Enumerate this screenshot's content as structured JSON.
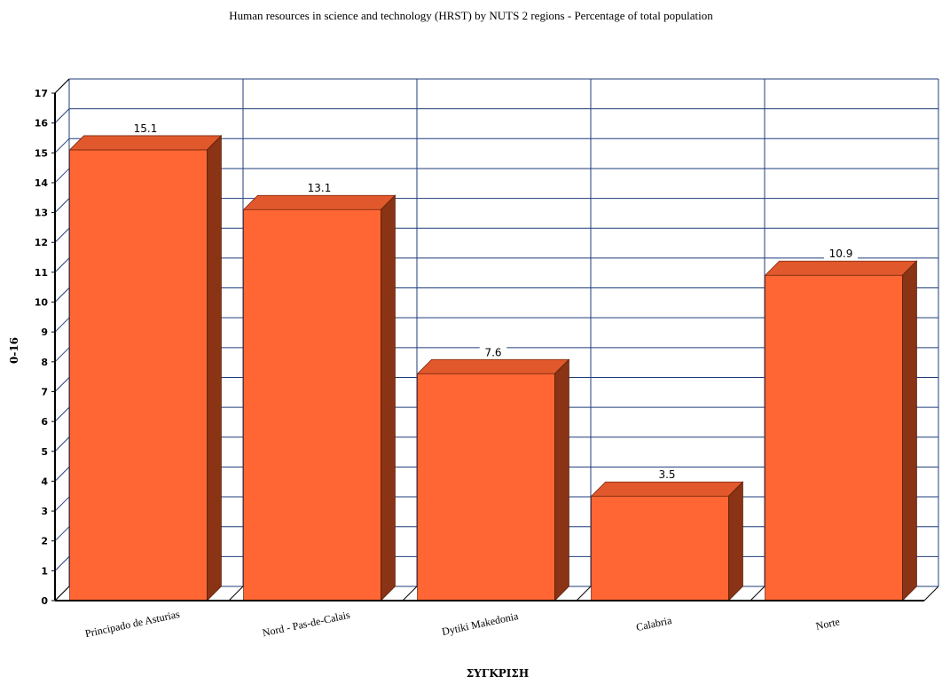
{
  "chart_data": {
    "type": "bar",
    "title": "Human resources in science and technology (HRST) by NUTS 2 regions - Percentage of total population",
    "xlabel": "ΣΥΓΚΡΙΣΗ",
    "ylabel": "0-16",
    "categories": [
      "Principado de Asturias",
      "Nord - Pas-de-Calais",
      "Dytiki Makedonia",
      "Calabria",
      "Norte"
    ],
    "values": [
      15.1,
      13.1,
      7.6,
      3.5,
      10.9
    ],
    "value_labels": [
      "15.1",
      "13.1",
      "7.6",
      "3.5",
      "10.9"
    ],
    "ylim": [
      0,
      17
    ],
    "yticks": [
      0,
      1,
      2,
      3,
      4,
      5,
      6,
      7,
      8,
      9,
      10,
      11,
      12,
      13,
      14,
      15,
      16,
      17
    ],
    "grid": true,
    "style": "3d",
    "colors": {
      "bar_front": "#ff6633",
      "bar_top": "#e0582c",
      "bar_side": "#8a3315",
      "grid": "#1f3d7a",
      "axis": "#000000"
    }
  }
}
